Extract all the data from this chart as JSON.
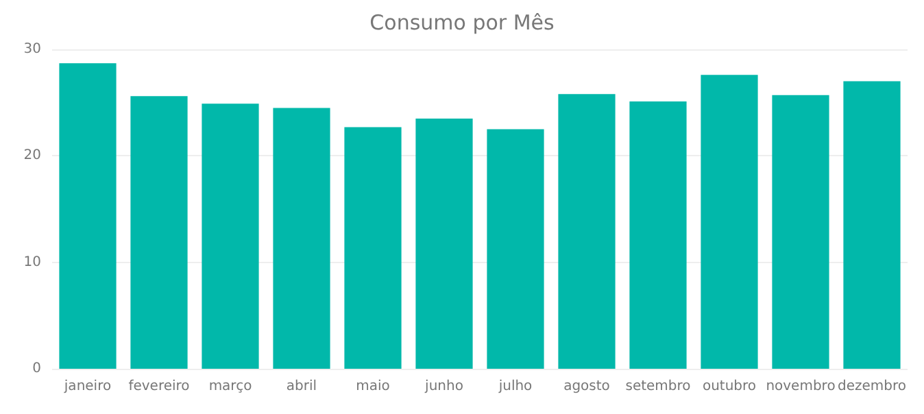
{
  "chart_data": {
    "type": "bar",
    "title": "Consumo por Mês",
    "categories": [
      "janeiro",
      "fevereiro",
      "março",
      "abril",
      "maio",
      "junho",
      "julho",
      "agosto",
      "setembro",
      "outubro",
      "novembro",
      "dezembro"
    ],
    "values": [
      28.7,
      25.6,
      24.9,
      24.5,
      22.7,
      23.5,
      22.5,
      25.8,
      25.1,
      27.6,
      25.7,
      27.0
    ],
    "color": "#01b8aa",
    "ylim": [
      0,
      30
    ],
    "yticks": [
      0,
      10,
      20,
      30
    ],
    "grid": "y"
  }
}
